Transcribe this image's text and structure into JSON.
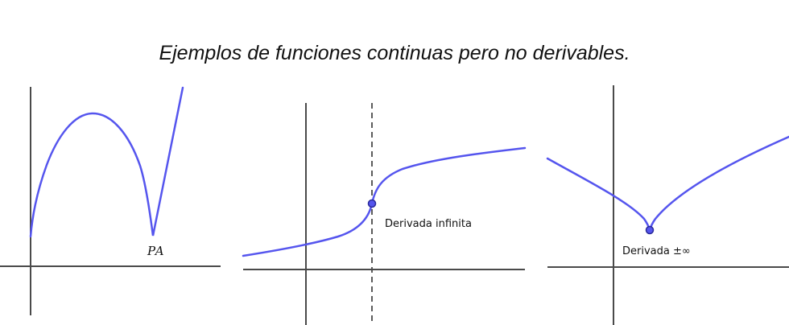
{
  "title": "Ejemplos de funciones continuas pero no derivables.",
  "panels": [
    {
      "label": "PA"
    },
    {
      "label": "Derivada infinita"
    },
    {
      "label": "Derivada ±∞"
    }
  ],
  "colors": {
    "curve": "#5555ee",
    "axis": "#4a4a4a",
    "point": "#5555ee"
  }
}
